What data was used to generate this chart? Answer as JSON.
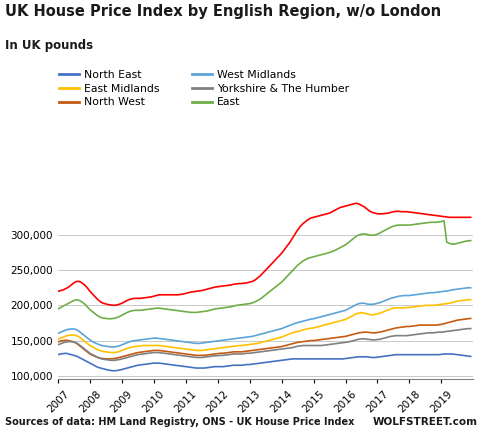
{
  "title": "UK House Price Index by English Region, w/o London",
  "subtitle": "In UK pounds",
  "source": "Sources of data: HM Land Registry, ONS - UK House Price Index",
  "watermark": "WOLFSTREET.com",
  "years": [
    2007.0,
    2007.083,
    2007.167,
    2007.25,
    2007.333,
    2007.417,
    2007.5,
    2007.583,
    2007.667,
    2007.75,
    2007.833,
    2007.917,
    2008.0,
    2008.083,
    2008.167,
    2008.25,
    2008.333,
    2008.417,
    2008.5,
    2008.583,
    2008.667,
    2008.75,
    2008.833,
    2008.917,
    2009.0,
    2009.083,
    2009.167,
    2009.25,
    2009.333,
    2009.417,
    2009.5,
    2009.583,
    2009.667,
    2009.75,
    2009.833,
    2009.917,
    2010.0,
    2010.083,
    2010.167,
    2010.25,
    2010.333,
    2010.417,
    2010.5,
    2010.583,
    2010.667,
    2010.75,
    2010.833,
    2010.917,
    2011.0,
    2011.083,
    2011.167,
    2011.25,
    2011.333,
    2011.417,
    2011.5,
    2011.583,
    2011.667,
    2011.75,
    2011.833,
    2011.917,
    2012.0,
    2012.083,
    2012.167,
    2012.25,
    2012.333,
    2012.417,
    2012.5,
    2012.583,
    2012.667,
    2012.75,
    2012.833,
    2012.917,
    2013.0,
    2013.083,
    2013.167,
    2013.25,
    2013.333,
    2013.417,
    2013.5,
    2013.583,
    2013.667,
    2013.75,
    2013.833,
    2013.917,
    2014.0,
    2014.083,
    2014.167,
    2014.25,
    2014.333,
    2014.417,
    2014.5,
    2014.583,
    2014.667,
    2014.75,
    2014.833,
    2014.917,
    2015.0,
    2015.083,
    2015.167,
    2015.25,
    2015.333,
    2015.417,
    2015.5,
    2015.583,
    2015.667,
    2015.75,
    2015.833,
    2015.917,
    2016.0,
    2016.083,
    2016.167,
    2016.25,
    2016.333,
    2016.417,
    2016.5,
    2016.583,
    2016.667,
    2016.75,
    2016.833,
    2016.917,
    2017.0,
    2017.083,
    2017.167,
    2017.25,
    2017.333,
    2017.417,
    2017.5,
    2017.583,
    2017.667,
    2017.75,
    2017.833,
    2017.917,
    2018.0,
    2018.083,
    2018.167,
    2018.25,
    2018.333,
    2018.417,
    2018.5,
    2018.583,
    2018.667,
    2018.75,
    2018.833,
    2018.917,
    2019.0,
    2019.083,
    2019.167,
    2019.25,
    2019.333,
    2019.417,
    2019.5,
    2019.583,
    2019.667,
    2019.75,
    2019.833,
    2019.917
  ],
  "north_east": [
    130000,
    131000,
    131500,
    132000,
    131000,
    130000,
    129000,
    128000,
    126000,
    124000,
    122000,
    120000,
    118000,
    116000,
    114000,
    112000,
    111000,
    110000,
    109000,
    108000,
    107500,
    107000,
    107500,
    108000,
    109000,
    110000,
    111000,
    112000,
    113000,
    114000,
    115000,
    115500,
    116000,
    116500,
    117000,
    117500,
    118000,
    118000,
    118000,
    117500,
    117000,
    116500,
    116000,
    115500,
    115000,
    114500,
    114000,
    113500,
    113000,
    112500,
    112000,
    111500,
    111000,
    111000,
    111000,
    111000,
    111500,
    112000,
    112500,
    113000,
    113000,
    113000,
    113000,
    113500,
    114000,
    114500,
    115000,
    115000,
    115000,
    115000,
    115500,
    116000,
    116000,
    116500,
    117000,
    117500,
    118000,
    118500,
    119000,
    119500,
    120000,
    120500,
    121000,
    121500,
    122000,
    122500,
    123000,
    123500,
    124000,
    124000,
    124000,
    124000,
    124000,
    124000,
    124000,
    124000,
    124000,
    124000,
    124000,
    124000,
    124000,
    124000,
    124000,
    124000,
    124000,
    124000,
    124000,
    124000,
    124500,
    125000,
    125500,
    126000,
    126500,
    127000,
    127000,
    127000,
    127000,
    126500,
    126000,
    126000,
    126500,
    127000,
    127500,
    128000,
    128500,
    129000,
    129500,
    130000,
    130000,
    130000,
    130000,
    130000,
    130000,
    130000,
    130000,
    130000,
    130000,
    130000,
    130000,
    130000,
    130000,
    130000,
    130000,
    130000,
    130500,
    131000,
    131000,
    131000,
    131000,
    130500,
    130000,
    129500,
    129000,
    128500,
    128000,
    127500
  ],
  "north_west": [
    148000,
    149500,
    150000,
    150500,
    150000,
    149000,
    148000,
    146000,
    143000,
    140000,
    137000,
    134000,
    131000,
    129000,
    127500,
    126000,
    125000,
    124500,
    124000,
    124000,
    124000,
    124500,
    125000,
    126000,
    127000,
    128000,
    129000,
    130000,
    131000,
    132000,
    133000,
    133500,
    134000,
    134500,
    135000,
    135500,
    136000,
    136000,
    136000,
    135500,
    135000,
    134500,
    134000,
    133500,
    133000,
    132500,
    132000,
    131500,
    131000,
    130500,
    130000,
    129500,
    129000,
    129000,
    129000,
    129000,
    129500,
    130000,
    130500,
    131000,
    131500,
    132000,
    132000,
    132500,
    133000,
    133500,
    134000,
    134000,
    134000,
    134000,
    134500,
    135000,
    135500,
    136000,
    136500,
    137000,
    137500,
    138000,
    138500,
    139000,
    139500,
    140000,
    140500,
    141000,
    141500,
    142500,
    143500,
    144500,
    145500,
    146500,
    147500,
    148000,
    148500,
    149000,
    149500,
    150000,
    150000,
    150500,
    151000,
    151500,
    152000,
    152500,
    153000,
    153500,
    154000,
    154500,
    155000,
    155500,
    156000,
    157000,
    158000,
    159000,
    160000,
    161000,
    161500,
    162000,
    162000,
    161500,
    161000,
    161000,
    161500,
    162000,
    163000,
    164000,
    165000,
    166000,
    167000,
    168000,
    168500,
    169000,
    169500,
    170000,
    170000,
    170500,
    171000,
    171500,
    172000,
    172000,
    172000,
    172000,
    172000,
    172000,
    172000,
    172500,
    173000,
    174000,
    175000,
    176000,
    177000,
    178000,
    179000,
    179500,
    180000,
    180500,
    181000,
    181500
  ],
  "yorkshire": [
    144000,
    145500,
    147000,
    148000,
    148500,
    148500,
    148000,
    146500,
    144000,
    141000,
    138000,
    135000,
    132000,
    130000,
    128000,
    126000,
    124500,
    123500,
    123000,
    122500,
    122000,
    122000,
    122500,
    123000,
    124000,
    125000,
    126000,
    127000,
    128000,
    129000,
    130000,
    130500,
    131000,
    131500,
    132000,
    132500,
    133000,
    133000,
    133000,
    132500,
    132000,
    131500,
    131000,
    130500,
    130000,
    129500,
    129000,
    128500,
    128000,
    127500,
    127000,
    126500,
    126000,
    126000,
    126000,
    126500,
    127000,
    127500,
    128000,
    128500,
    128500,
    129000,
    129000,
    129500,
    130000,
    130500,
    131000,
    131000,
    131000,
    131000,
    131500,
    132000,
    132000,
    132500,
    133000,
    133500,
    134000,
    134500,
    135000,
    135500,
    136000,
    136500,
    137000,
    137500,
    138000,
    138500,
    139000,
    139500,
    140000,
    141000,
    142000,
    142500,
    143000,
    143000,
    143000,
    143000,
    143000,
    143000,
    143000,
    143000,
    143500,
    144000,
    144500,
    145000,
    145500,
    146000,
    146500,
    147000,
    147500,
    148000,
    149000,
    150000,
    151000,
    152000,
    152500,
    152500,
    152000,
    151500,
    151000,
    151000,
    151500,
    152000,
    153000,
    154000,
    155000,
    156000,
    156500,
    157000,
    157000,
    157000,
    157000,
    157000,
    157500,
    158000,
    158500,
    159000,
    159500,
    160000,
    160500,
    161000,
    161000,
    161000,
    161500,
    162000,
    162000,
    162500,
    163000,
    163500,
    164000,
    164500,
    165000,
    165500,
    166000,
    166500,
    167000,
    167000
  ],
  "east_midlands": [
    152000,
    153500,
    155000,
    156500,
    157500,
    158000,
    158000,
    157000,
    155000,
    152000,
    149000,
    146000,
    143000,
    141000,
    139000,
    137000,
    135500,
    134500,
    134000,
    133500,
    133000,
    133000,
    133500,
    134500,
    136000,
    137500,
    139000,
    140000,
    141000,
    141500,
    142000,
    142500,
    143000,
    143000,
    143000,
    143000,
    143000,
    143000,
    143000,
    142500,
    142000,
    141500,
    141000,
    140500,
    140000,
    139500,
    139000,
    138500,
    138000,
    137500,
    137000,
    136500,
    136000,
    136000,
    136000,
    136500,
    137000,
    137500,
    138000,
    138500,
    139000,
    139500,
    140000,
    140500,
    141000,
    141500,
    142000,
    142500,
    143000,
    143000,
    143500,
    144000,
    144500,
    145000,
    145500,
    146000,
    147000,
    148000,
    149000,
    150000,
    151000,
    152000,
    153000,
    154000,
    155000,
    156500,
    158000,
    159500,
    161000,
    162000,
    163000,
    164000,
    165000,
    166000,
    167000,
    167500,
    168000,
    169000,
    170000,
    171000,
    172000,
    173000,
    174000,
    175000,
    176000,
    177000,
    178000,
    179000,
    180000,
    182000,
    184000,
    186000,
    188000,
    189000,
    189500,
    189000,
    188000,
    187000,
    186500,
    187000,
    188000,
    189000,
    190500,
    192000,
    193500,
    195000,
    196000,
    196500,
    196500,
    196500,
    196500,
    197000,
    197000,
    197500,
    198000,
    198500,
    199000,
    199500,
    200000,
    200000,
    200000,
    200000,
    200500,
    201000,
    201500,
    202000,
    202500,
    203000,
    204000,
    205000,
    206000,
    206500,
    207000,
    207500,
    208000,
    208000
  ],
  "west_midlands": [
    160000,
    162000,
    163500,
    165000,
    166000,
    166500,
    166500,
    165500,
    163000,
    160000,
    157000,
    154000,
    151000,
    148500,
    146500,
    145000,
    143500,
    142500,
    142000,
    141500,
    141000,
    141000,
    141500,
    142500,
    144000,
    145500,
    147000,
    148500,
    149500,
    150000,
    150500,
    151000,
    151500,
    152000,
    152500,
    153000,
    153500,
    153500,
    153000,
    152500,
    152000,
    151500,
    151000,
    150500,
    150000,
    149500,
    149000,
    148500,
    148000,
    147500,
    147000,
    146500,
    146000,
    146000,
    146500,
    147000,
    147500,
    148000,
    148500,
    149000,
    149500,
    150000,
    150500,
    151000,
    151500,
    152000,
    152500,
    153000,
    153500,
    154000,
    154500,
    155000,
    155500,
    156000,
    157000,
    158000,
    159000,
    160000,
    161000,
    162000,
    163000,
    164000,
    165000,
    166000,
    167000,
    168500,
    170000,
    171500,
    173000,
    174500,
    175500,
    176500,
    177500,
    178500,
    179500,
    180500,
    181000,
    182000,
    183000,
    184000,
    185000,
    186000,
    187000,
    188000,
    189000,
    190000,
    191000,
    192000,
    193000,
    195000,
    197000,
    199000,
    201000,
    202500,
    203000,
    203000,
    202000,
    201500,
    201500,
    202000,
    203000,
    204000,
    205500,
    207000,
    208500,
    210000,
    211000,
    212000,
    213000,
    213500,
    214000,
    214000,
    214000,
    214500,
    215000,
    215500,
    216000,
    216500,
    217000,
    217500,
    218000,
    218000,
    218500,
    219000,
    219500,
    220000,
    220500,
    221000,
    222000,
    222500,
    223000,
    223500,
    224000,
    224500,
    225000,
    225000
  ],
  "east": [
    195000,
    197000,
    199000,
    201000,
    203000,
    205000,
    207000,
    208000,
    207000,
    205000,
    202000,
    198000,
    194000,
    191000,
    188000,
    185000,
    183000,
    182000,
    181500,
    181000,
    181000,
    181500,
    182500,
    184000,
    186000,
    188000,
    190000,
    191500,
    192500,
    193000,
    193000,
    193000,
    193500,
    194000,
    194500,
    195000,
    195500,
    196000,
    196000,
    195500,
    195000,
    194500,
    194000,
    193500,
    193000,
    192500,
    192000,
    191500,
    191000,
    190500,
    190000,
    190000,
    190000,
    190500,
    191000,
    191500,
    192000,
    193000,
    194000,
    195000,
    195500,
    196000,
    196500,
    197000,
    197500,
    198000,
    199000,
    200000,
    200500,
    201000,
    201500,
    202000,
    202500,
    203500,
    205000,
    207000,
    209000,
    212000,
    215000,
    218000,
    221000,
    224000,
    227000,
    230000,
    233000,
    237000,
    241000,
    245000,
    249000,
    253000,
    257000,
    260000,
    263000,
    265000,
    267000,
    268000,
    269000,
    270000,
    271000,
    272000,
    273000,
    274000,
    275000,
    276500,
    278000,
    280000,
    282000,
    284000,
    286000,
    289000,
    292000,
    295000,
    298000,
    300000,
    301000,
    301500,
    301000,
    300000,
    299500,
    300000,
    301000,
    303000,
    305000,
    307000,
    309000,
    311000,
    312500,
    313500,
    314000,
    314000,
    314000,
    314000,
    314000,
    314500,
    315000,
    315500,
    316000,
    316500,
    317000,
    317500,
    318000,
    318000,
    318000,
    318500,
    319000,
    320000,
    290000,
    288000,
    287000,
    287000,
    288000,
    289000,
    290000,
    291000,
    291500,
    292000
  ],
  "south_east_hpi": [
    220000,
    221000,
    222000,
    224000,
    226000,
    229000,
    232000,
    234000,
    234000,
    232000,
    229000,
    225000,
    220000,
    216000,
    212000,
    208000,
    205000,
    203000,
    202000,
    201000,
    200500,
    200000,
    200500,
    201500,
    203000,
    205000,
    207000,
    208500,
    209500,
    210000,
    210000,
    210000,
    210500,
    211000,
    211500,
    212000,
    213000,
    214000,
    215000,
    215000,
    215000,
    215000,
    215000,
    215000,
    215000,
    215000,
    215500,
    216000,
    217000,
    218000,
    219000,
    219500,
    220000,
    220500,
    221000,
    222000,
    223000,
    224000,
    225000,
    226000,
    226500,
    227000,
    227500,
    228000,
    228500,
    229000,
    230000,
    230500,
    231000,
    231000,
    231500,
    232000,
    233000,
    234000,
    236000,
    239000,
    242000,
    246000,
    250000,
    254000,
    258000,
    262000,
    266000,
    270000,
    274000,
    279000,
    284000,
    289000,
    295000,
    301000,
    307000,
    312000,
    316000,
    319000,
    322000,
    324000,
    325000,
    326000,
    327000,
    328000,
    329000,
    330000,
    331000,
    333000,
    335000,
    337000,
    339000,
    340000,
    341000,
    342000,
    343000,
    344000,
    345000,
    344000,
    342000,
    340000,
    337000,
    334000,
    332000,
    331000,
    330000,
    330000,
    330000,
    330500,
    331000,
    332000,
    333000,
    333500,
    333500,
    333000,
    333000,
    333000,
    332500,
    332000,
    331500,
    331000,
    330500,
    330000,
    329500,
    329000,
    328500,
    328000,
    327500,
    327000,
    326500,
    326000,
    325500,
    325000,
    325000,
    325000,
    325000,
    325000,
    325000,
    325000,
    325000,
    325000
  ],
  "colors": {
    "north_east": "#4472C4",
    "north_west": "#C55A11",
    "yorkshire": "#808080",
    "east_midlands": "#FFC000",
    "west_midlands": "#5BA3D9",
    "east": "#70AD47",
    "south_east": "#FF0000"
  },
  "xlim": [
    2007.0,
    2020.0
  ],
  "ylim": [
    95000,
    355000
  ],
  "yticks": [
    100000,
    150000,
    200000,
    250000,
    300000
  ],
  "xticks": [
    2007,
    2008,
    2009,
    2010,
    2011,
    2012,
    2013,
    2014,
    2015,
    2016,
    2017,
    2018,
    2019
  ]
}
